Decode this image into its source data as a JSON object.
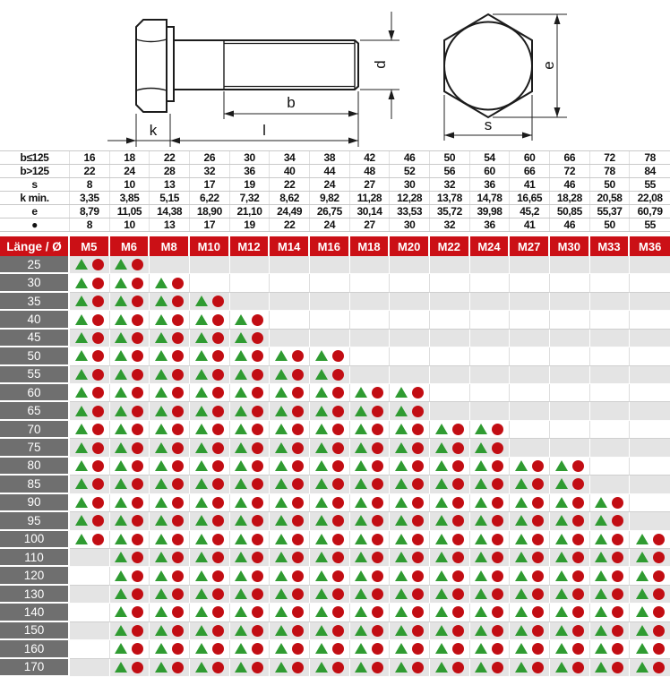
{
  "drawing": {
    "dim_labels": {
      "k": "k",
      "l": "l",
      "b": "b",
      "d": "d",
      "e": "e",
      "s": "s"
    }
  },
  "spec_table": {
    "rows": [
      {
        "label": "b≤125",
        "values": [
          "16",
          "18",
          "22",
          "26",
          "30",
          "34",
          "38",
          "42",
          "46",
          "50",
          "54",
          "60",
          "66",
          "72",
          "78"
        ]
      },
      {
        "label": "b>125",
        "values": [
          "22",
          "24",
          "28",
          "32",
          "36",
          "40",
          "44",
          "48",
          "52",
          "56",
          "60",
          "66",
          "72",
          "78",
          "84"
        ]
      },
      {
        "label": "s",
        "values": [
          "8",
          "10",
          "13",
          "17",
          "19",
          "22",
          "24",
          "27",
          "30",
          "32",
          "36",
          "41",
          "46",
          "50",
          "55"
        ]
      },
      {
        "label": "k min.",
        "values": [
          "3,35",
          "3,85",
          "5,15",
          "6,22",
          "7,32",
          "8,62",
          "9,82",
          "11,28",
          "12,28",
          "13,78",
          "14,78",
          "16,65",
          "18,28",
          "20,58",
          "22,08"
        ]
      },
      {
        "label": "e",
        "values": [
          "8,79",
          "11,05",
          "14,38",
          "18,90",
          "21,10",
          "24,49",
          "26,75",
          "30,14",
          "33,53",
          "35,72",
          "39,98",
          "45,2",
          "50,85",
          "55,37",
          "60,79"
        ]
      },
      {
        "label": "●",
        "values": [
          "8",
          "10",
          "13",
          "17",
          "19",
          "22",
          "24",
          "27",
          "30",
          "32",
          "36",
          "41",
          "46",
          "50",
          "55"
        ]
      }
    ]
  },
  "matrix": {
    "corner_label": "Länge / Ø",
    "columns": [
      "M5",
      "M6",
      "M8",
      "M10",
      "M12",
      "M14",
      "M16",
      "M18",
      "M20",
      "M22",
      "M24",
      "M27",
      "M30",
      "M33",
      "M36"
    ],
    "cell_symbols": [
      "green-triangle",
      "red-circle"
    ],
    "rows": [
      {
        "length": "25",
        "available": [
          "M5",
          "M6"
        ]
      },
      {
        "length": "30",
        "available": [
          "M5",
          "M6",
          "M8"
        ]
      },
      {
        "length": "35",
        "available": [
          "M5",
          "M6",
          "M8",
          "M10"
        ]
      },
      {
        "length": "40",
        "available": [
          "M5",
          "M6",
          "M8",
          "M10",
          "M12"
        ]
      },
      {
        "length": "45",
        "available": [
          "M5",
          "M6",
          "M8",
          "M10",
          "M12"
        ]
      },
      {
        "length": "50",
        "available": [
          "M5",
          "M6",
          "M8",
          "M10",
          "M12",
          "M14",
          "M16"
        ]
      },
      {
        "length": "55",
        "available": [
          "M5",
          "M6",
          "M8",
          "M10",
          "M12",
          "M14",
          "M16"
        ]
      },
      {
        "length": "60",
        "available": [
          "M5",
          "M6",
          "M8",
          "M10",
          "M12",
          "M14",
          "M16",
          "M18",
          "M20"
        ]
      },
      {
        "length": "65",
        "available": [
          "M5",
          "M6",
          "M8",
          "M10",
          "M12",
          "M14",
          "M16",
          "M18",
          "M20"
        ]
      },
      {
        "length": "70",
        "available": [
          "M5",
          "M6",
          "M8",
          "M10",
          "M12",
          "M14",
          "M16",
          "M18",
          "M20",
          "M22",
          "M24"
        ]
      },
      {
        "length": "75",
        "available": [
          "M5",
          "M6",
          "M8",
          "M10",
          "M12",
          "M14",
          "M16",
          "M18",
          "M20",
          "M22",
          "M24"
        ]
      },
      {
        "length": "80",
        "available": [
          "M5",
          "M6",
          "M8",
          "M10",
          "M12",
          "M14",
          "M16",
          "M18",
          "M20",
          "M22",
          "M24",
          "M27",
          "M30"
        ]
      },
      {
        "length": "85",
        "available": [
          "M5",
          "M6",
          "M8",
          "M10",
          "M12",
          "M14",
          "M16",
          "M18",
          "M20",
          "M22",
          "M24",
          "M27",
          "M30"
        ]
      },
      {
        "length": "90",
        "available": [
          "M5",
          "M6",
          "M8",
          "M10",
          "M12",
          "M14",
          "M16",
          "M18",
          "M20",
          "M22",
          "M24",
          "M27",
          "M30",
          "M33"
        ]
      },
      {
        "length": "95",
        "available": [
          "M5",
          "M6",
          "M8",
          "M10",
          "M12",
          "M14",
          "M16",
          "M18",
          "M20",
          "M22",
          "M24",
          "M27",
          "M30",
          "M33"
        ]
      },
      {
        "length": "100",
        "available": [
          "M5",
          "M6",
          "M8",
          "M10",
          "M12",
          "M14",
          "M16",
          "M18",
          "M20",
          "M22",
          "M24",
          "M27",
          "M30",
          "M33",
          "M36"
        ]
      },
      {
        "length": "110",
        "available": [
          "M6",
          "M8",
          "M10",
          "M12",
          "M14",
          "M16",
          "M18",
          "M20",
          "M22",
          "M24",
          "M27",
          "M30",
          "M33",
          "M36"
        ]
      },
      {
        "length": "120",
        "available": [
          "M6",
          "M8",
          "M10",
          "M12",
          "M14",
          "M16",
          "M18",
          "M20",
          "M22",
          "M24",
          "M27",
          "M30",
          "M33",
          "M36"
        ]
      },
      {
        "length": "130",
        "available": [
          "M6",
          "M8",
          "M10",
          "M12",
          "M14",
          "M16",
          "M18",
          "M20",
          "M22",
          "M24",
          "M27",
          "M30",
          "M33",
          "M36"
        ]
      },
      {
        "length": "140",
        "available": [
          "M6",
          "M8",
          "M10",
          "M12",
          "M14",
          "M16",
          "M18",
          "M20",
          "M22",
          "M24",
          "M27",
          "M30",
          "M33",
          "M36"
        ]
      },
      {
        "length": "150",
        "available": [
          "M6",
          "M8",
          "M10",
          "M12",
          "M14",
          "M16",
          "M18",
          "M20",
          "M22",
          "M24",
          "M27",
          "M30",
          "M33",
          "M36"
        ]
      },
      {
        "length": "160",
        "available": [
          "M6",
          "M8",
          "M10",
          "M12",
          "M14",
          "M16",
          "M18",
          "M20",
          "M22",
          "M24",
          "M27",
          "M30",
          "M33",
          "M36"
        ]
      },
      {
        "length": "170",
        "available": [
          "M6",
          "M8",
          "M10",
          "M12",
          "M14",
          "M16",
          "M18",
          "M20",
          "M22",
          "M24",
          "M27",
          "M30",
          "M33",
          "M36"
        ]
      }
    ]
  },
  "colors": {
    "header_red": "#cb1016",
    "row_label_gray": "#6f6f6f",
    "alt_row_gray": "#e4e4e4",
    "triangle_green": "#2f9b31",
    "circle_red": "#c20d13"
  }
}
